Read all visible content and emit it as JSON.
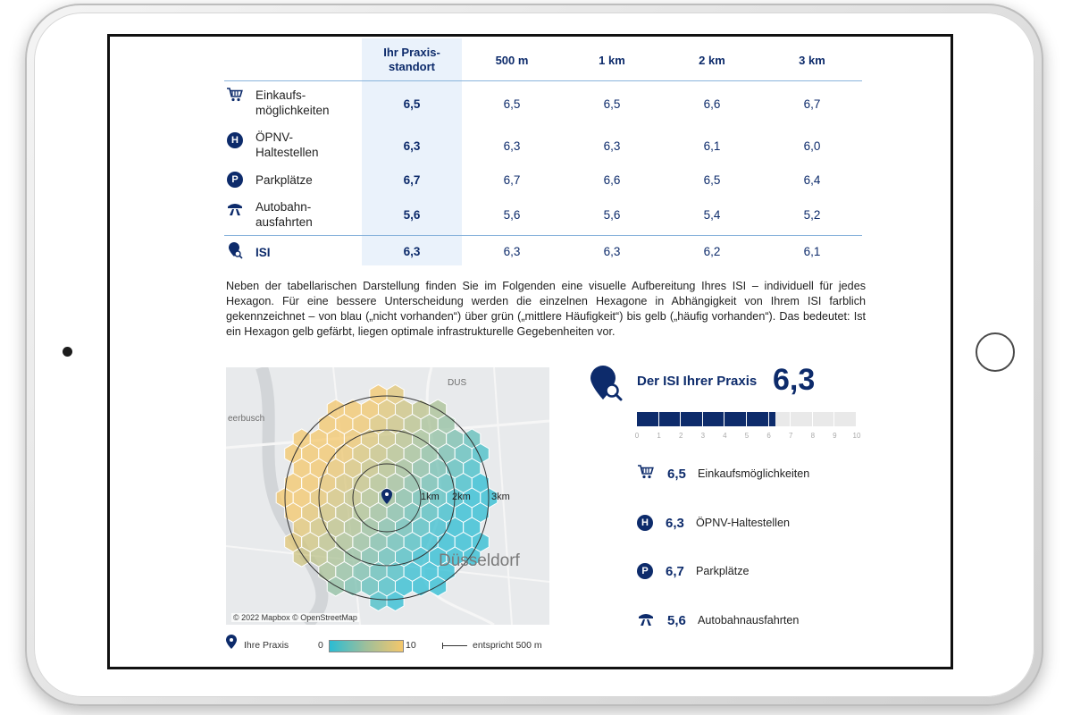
{
  "table": {
    "headers": [
      "Ihr Praxis-\nstandort",
      "500 m",
      "1 km",
      "2 km",
      "3 km"
    ],
    "rows": [
      {
        "label": "Einkaufs-\nmöglichkeiten",
        "icon": "shopping-cart-icon",
        "values": [
          "6,5",
          "6,5",
          "6,5",
          "6,6",
          "6,7"
        ]
      },
      {
        "label": "ÖPNV-\nHaltestellen",
        "icon": "bus-stop-icon",
        "badge": "H",
        "values": [
          "6,3",
          "6,3",
          "6,3",
          "6,1",
          "6,0"
        ]
      },
      {
        "label": "Parkplätze",
        "icon": "parking-icon",
        "badge": "P",
        "values": [
          "6,7",
          "6,7",
          "6,6",
          "6,5",
          "6,4"
        ]
      },
      {
        "label": "Autobahn-\nausfahrten",
        "icon": "highway-icon",
        "values": [
          "5,6",
          "5,6",
          "5,6",
          "5,4",
          "5,2"
        ]
      }
    ],
    "total": {
      "label": "ISI",
      "icon": "isi-pin-icon",
      "values": [
        "6,3",
        "6,3",
        "6,3",
        "6,2",
        "6,1"
      ]
    }
  },
  "paragraph": "Neben der tabellarischen Darstellung finden Sie im Folgenden eine visuelle Aufbereitung Ihres ISI – individuell für jedes Hexagon. Für eine bessere Unterscheidung werden die einzelnen Hexagone in Abhängigkeit von Ihrem ISI farblich gekennzeichnet – von blau („nicht vorhanden“) über grün („mittlere Häufigkeit“) bis gelb („häufig vorhanden“). Das bedeutet: Ist ein Hexagon gelb gefärbt, liegen optimale infrastrukturelle Gegebenheiten vor.",
  "map": {
    "attribution": "© 2022 Mapbox © OpenStreetMap",
    "city": "Düsseldorf",
    "place_labels": [
      "eerbusch",
      "DUS"
    ],
    "ring_labels": [
      "1km",
      "2km",
      "3km"
    ],
    "colors": {
      "low": "#2bbcd3",
      "mid": "#9fbf9a",
      "high": "#f4c76b"
    }
  },
  "legend": {
    "practice": "Ihre Praxis",
    "scale_min": "0",
    "scale_max": "10",
    "distance": "entspricht 500 m"
  },
  "isi": {
    "title": "Der ISI Ihrer Praxis",
    "score": "6,3",
    "score_value": 6.3,
    "scale_max": 10,
    "ticks": [
      "0",
      "1",
      "2",
      "3",
      "4",
      "5",
      "6",
      "7",
      "8",
      "9",
      "10"
    ]
  },
  "summary": [
    {
      "value": "6,5",
      "label": "Einkaufsmöglichkeiten",
      "icon": "shopping-cart-icon"
    },
    {
      "value": "6,3",
      "label": "ÖPNV-Haltestellen",
      "icon": "bus-stop-icon",
      "badge": "H"
    },
    {
      "value": "6,7",
      "label": "Parkplätze",
      "icon": "parking-icon",
      "badge": "P"
    },
    {
      "value": "5,6",
      "label": "Autobahnausfahrten",
      "icon": "highway-icon"
    }
  ]
}
